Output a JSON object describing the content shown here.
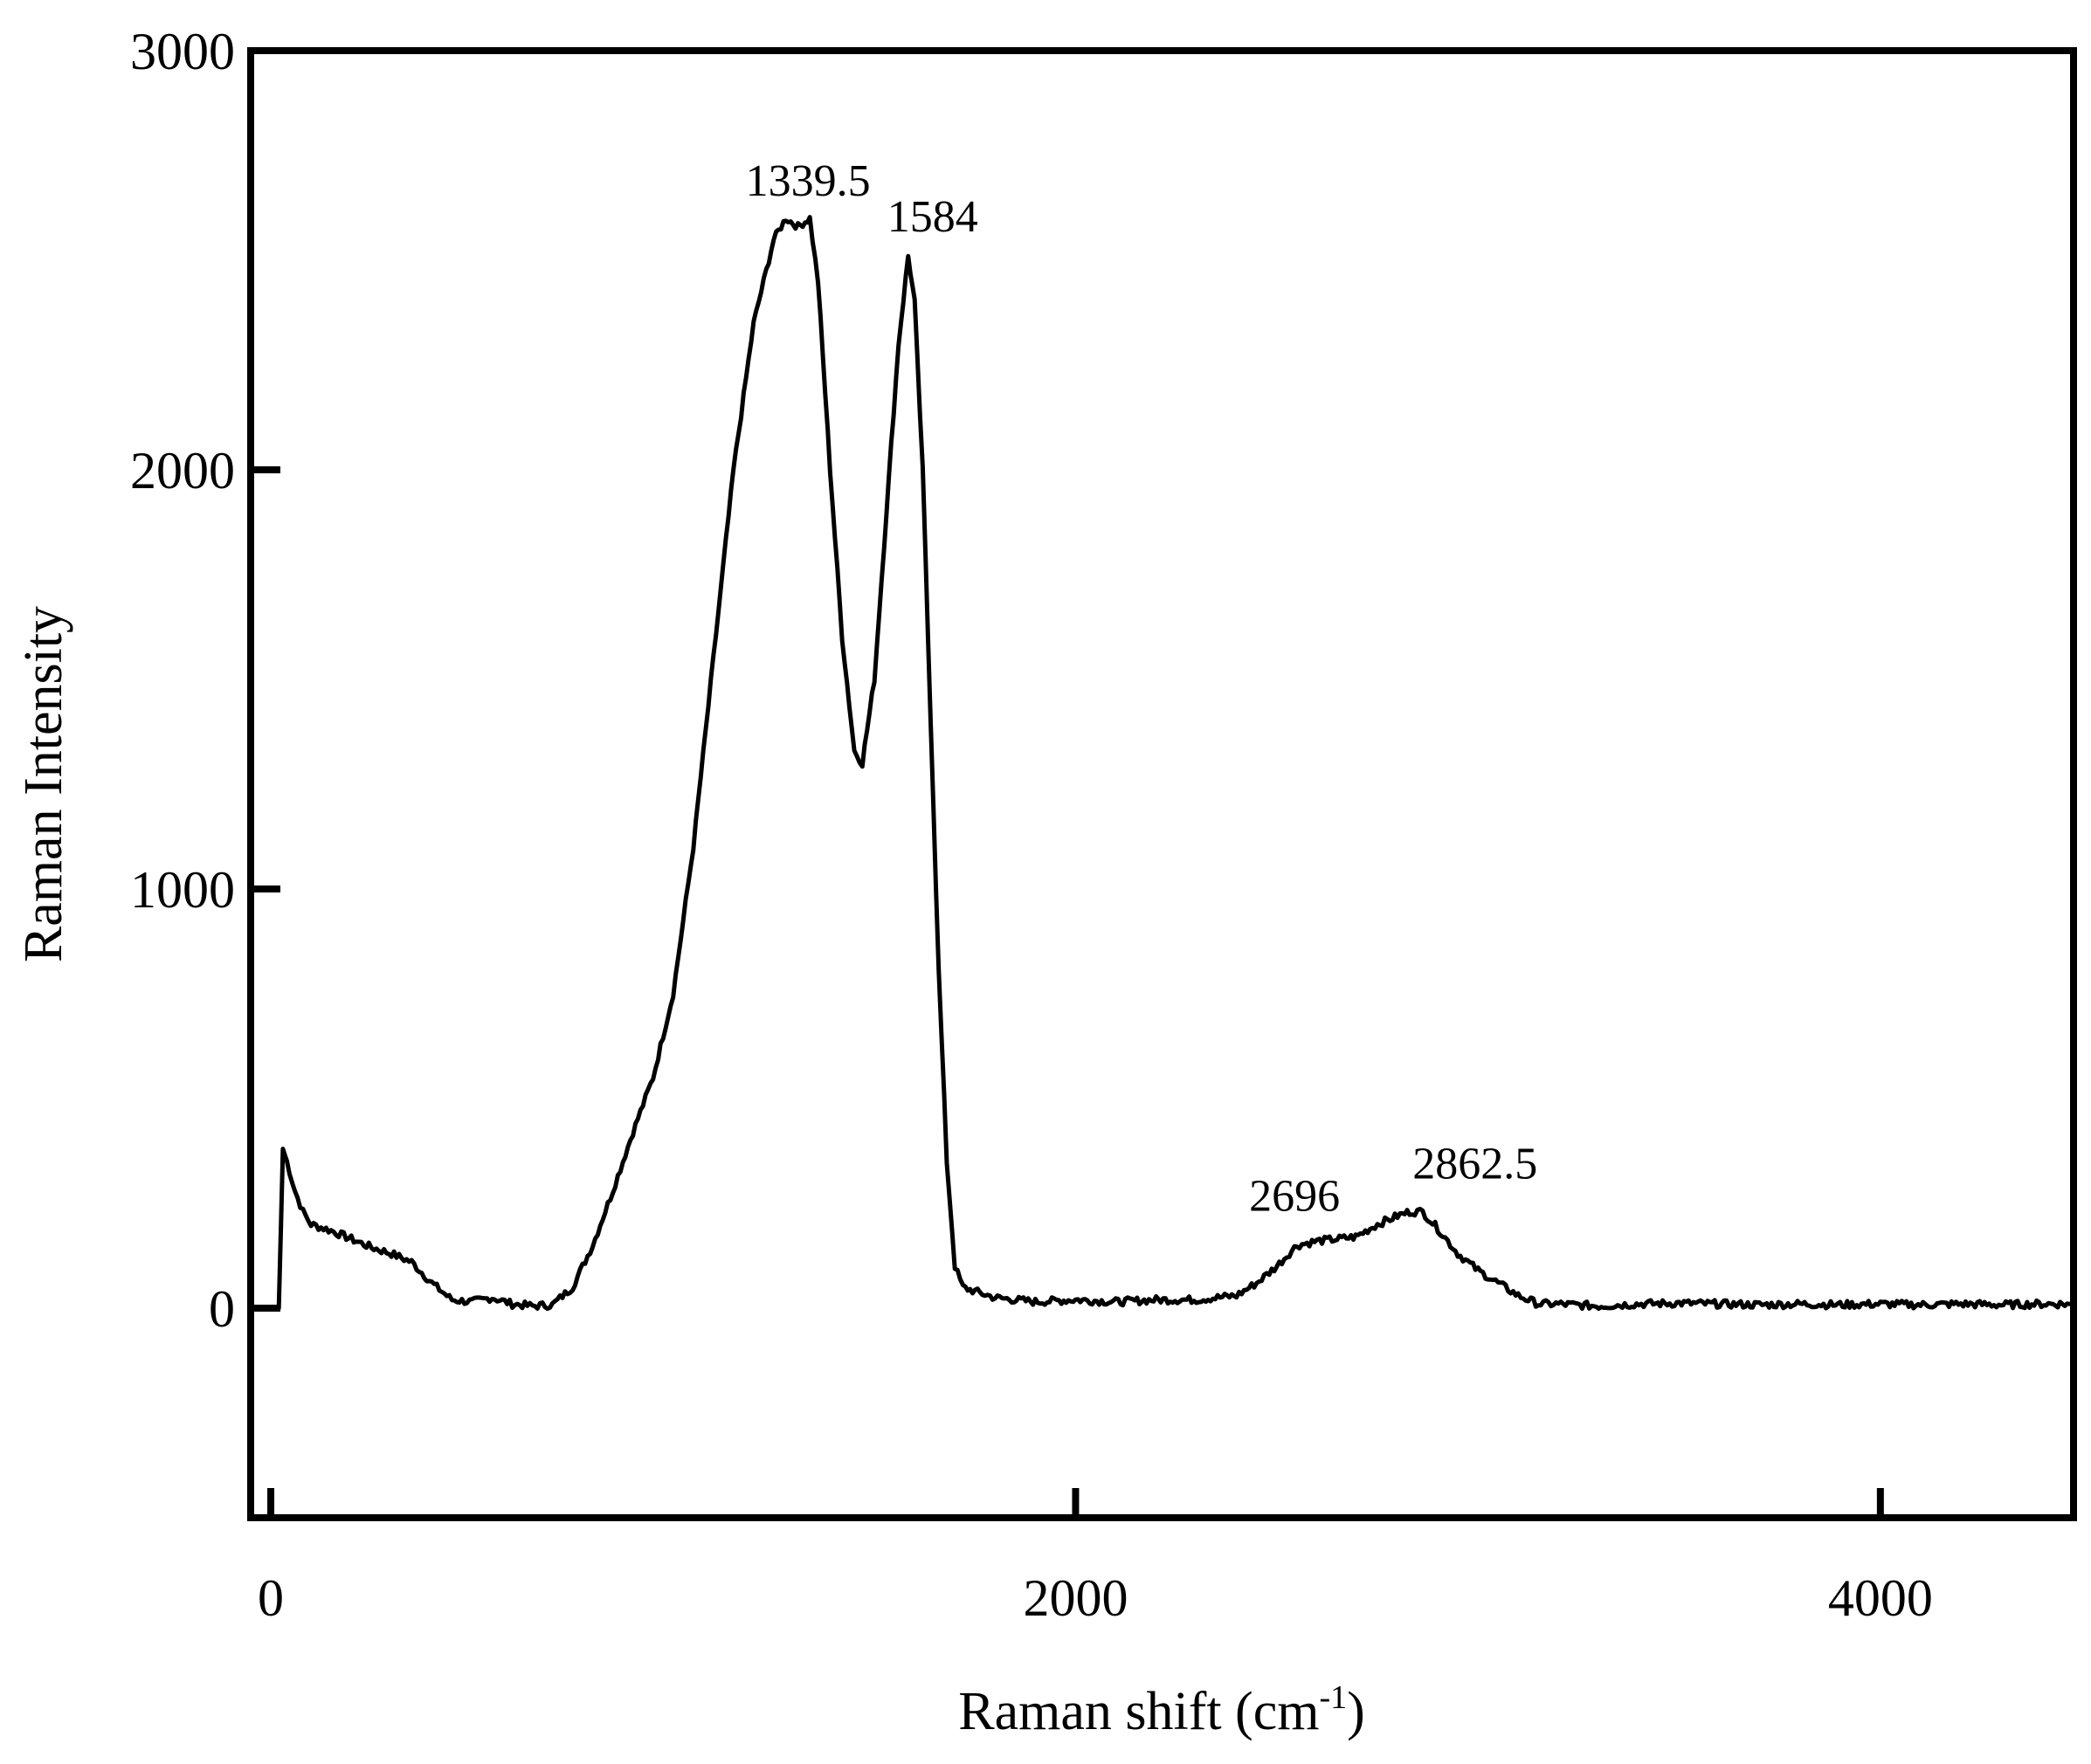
{
  "chart_data": {
    "type": "line",
    "xlabel": "Raman shift (cm",
    "xlabel_superscript": "-1",
    "xlabel_suffix": ")",
    "ylabel": "Raman Intensity",
    "xlim": [
      -50,
      4480
    ],
    "ylim": [
      -500,
      3000
    ],
    "xticks": [
      0,
      2000,
      4000
    ],
    "xtick_labels": [
      "0",
      "2000",
      "4000"
    ],
    "yticks": [
      0,
      1000,
      2000,
      3000
    ],
    "ytick_labels": [
      "0",
      "1000",
      "2000",
      "3000"
    ],
    "grid": false,
    "line_color": "#000000",
    "peak_annotations": [
      {
        "label": "1339.5",
        "x": 1339.5,
        "y": 2600
      },
      {
        "label": "1584",
        "x": 1584,
        "y": 2510
      },
      {
        "label": "2696",
        "x": 2696,
        "y": 170
      },
      {
        "label": "2862.5",
        "x": 2862.5,
        "y": 230
      }
    ],
    "series": [
      {
        "x": [
          0,
          20,
          30,
          40,
          60,
          80,
          100,
          150,
          200,
          250,
          300,
          350,
          400,
          450,
          500,
          550,
          600,
          650,
          700,
          750,
          800,
          850,
          900,
          950,
          1000,
          1050,
          1100,
          1150,
          1200,
          1250,
          1280,
          1310,
          1339.5,
          1360,
          1390,
          1420,
          1450,
          1470,
          1500,
          1530,
          1560,
          1584,
          1600,
          1620,
          1640,
          1660,
          1680,
          1700,
          1720,
          1750,
          1800,
          1900,
          2000,
          2100,
          2200,
          2300,
          2400,
          2450,
          2500,
          2550,
          2600,
          2650,
          2696,
          2750,
          2800,
          2830,
          2862.5,
          2900,
          2950,
          3000,
          3050,
          3100,
          3150,
          3200,
          3300,
          3400,
          3500,
          3600,
          3700,
          3800,
          3900,
          4000,
          4100,
          4200,
          4300,
          4400,
          4470
        ],
        "y": [
          0,
          0,
          380,
          350,
          280,
          230,
          200,
          185,
          165,
          145,
          130,
          110,
          60,
          20,
          15,
          25,
          10,
          5,
          8,
          50,
          150,
          280,
          420,
          550,
          750,
          1100,
          1550,
          2000,
          2350,
          2550,
          2600,
          2580,
          2600,
          2450,
          2000,
          1600,
          1330,
          1300,
          1500,
          1900,
          2300,
          2510,
          2400,
          2000,
          1400,
          800,
          350,
          100,
          50,
          40,
          25,
          15,
          20,
          15,
          20,
          20,
          30,
          60,
          100,
          150,
          160,
          165,
          170,
          200,
          220,
          230,
          230,
          190,
          130,
          90,
          60,
          30,
          10,
          10,
          5,
          10,
          12,
          10,
          8,
          10,
          8,
          10,
          8,
          10,
          8,
          10,
          10
        ]
      }
    ]
  }
}
